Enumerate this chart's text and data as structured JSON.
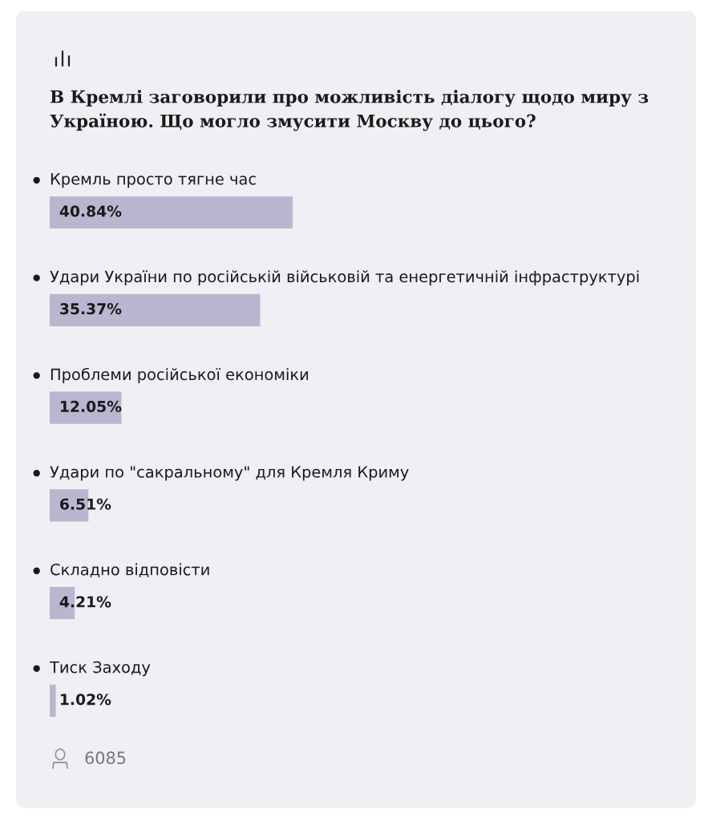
{
  "chart_data": {
    "type": "bar",
    "orientation": "horizontal",
    "title": "В Кремлі заговорили про можливість діалогу щодо миру з Україною. Що могло змусити Москву до цього?",
    "categories": [
      "Кремль просто тягне час",
      "Удари України по російській військовій та енергетичній інфраструктурі",
      "Проблеми російської економіки",
      "Удари по \"сакральному\" для Кремля Криму",
      "Складно відповісти",
      "Тиск Заходу"
    ],
    "values": [
      40.84,
      35.37,
      12.05,
      6.51,
      4.21,
      1.02
    ],
    "value_labels": [
      "40.84%",
      "35.37%",
      "12.05%",
      "6.51%",
      "4.21%",
      "1.02%"
    ],
    "color": "#bbb6d0",
    "annotations": [
      "6085"
    ]
  }
}
